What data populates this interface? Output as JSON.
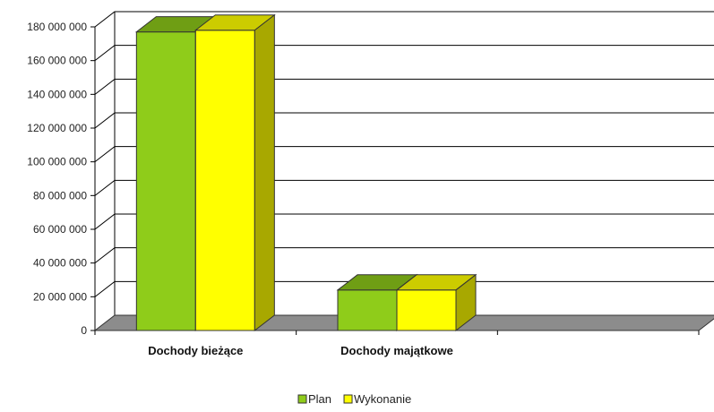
{
  "chart_data": {
    "type": "bar",
    "categories": [
      "Dochody bieżące",
      "Dochody majątkowe"
    ],
    "series": [
      {
        "name": "Plan",
        "values": [
          177000000,
          24000000
        ],
        "color": "#8fcc1a",
        "top_color": "#6f9e14",
        "side_color": "#5e8a10"
      },
      {
        "name": "Wykonanie",
        "values": [
          178000000,
          24000000
        ],
        "color": "#ffff00",
        "top_color": "#cccc00",
        "side_color": "#a8a800"
      }
    ],
    "ylim": [
      0,
      180000000
    ],
    "yticks": [
      0,
      20000000,
      40000000,
      60000000,
      80000000,
      100000000,
      120000000,
      140000000,
      160000000,
      180000000
    ],
    "ytick_labels": [
      "0",
      "20 000 000",
      "40 000 000",
      "60 000 000",
      "80 000 000",
      "100 000 000",
      "120 000 000",
      "140 000 000",
      "160 000 000",
      "180 000 000"
    ],
    "grid": true,
    "legend_position": "bottom-center"
  }
}
